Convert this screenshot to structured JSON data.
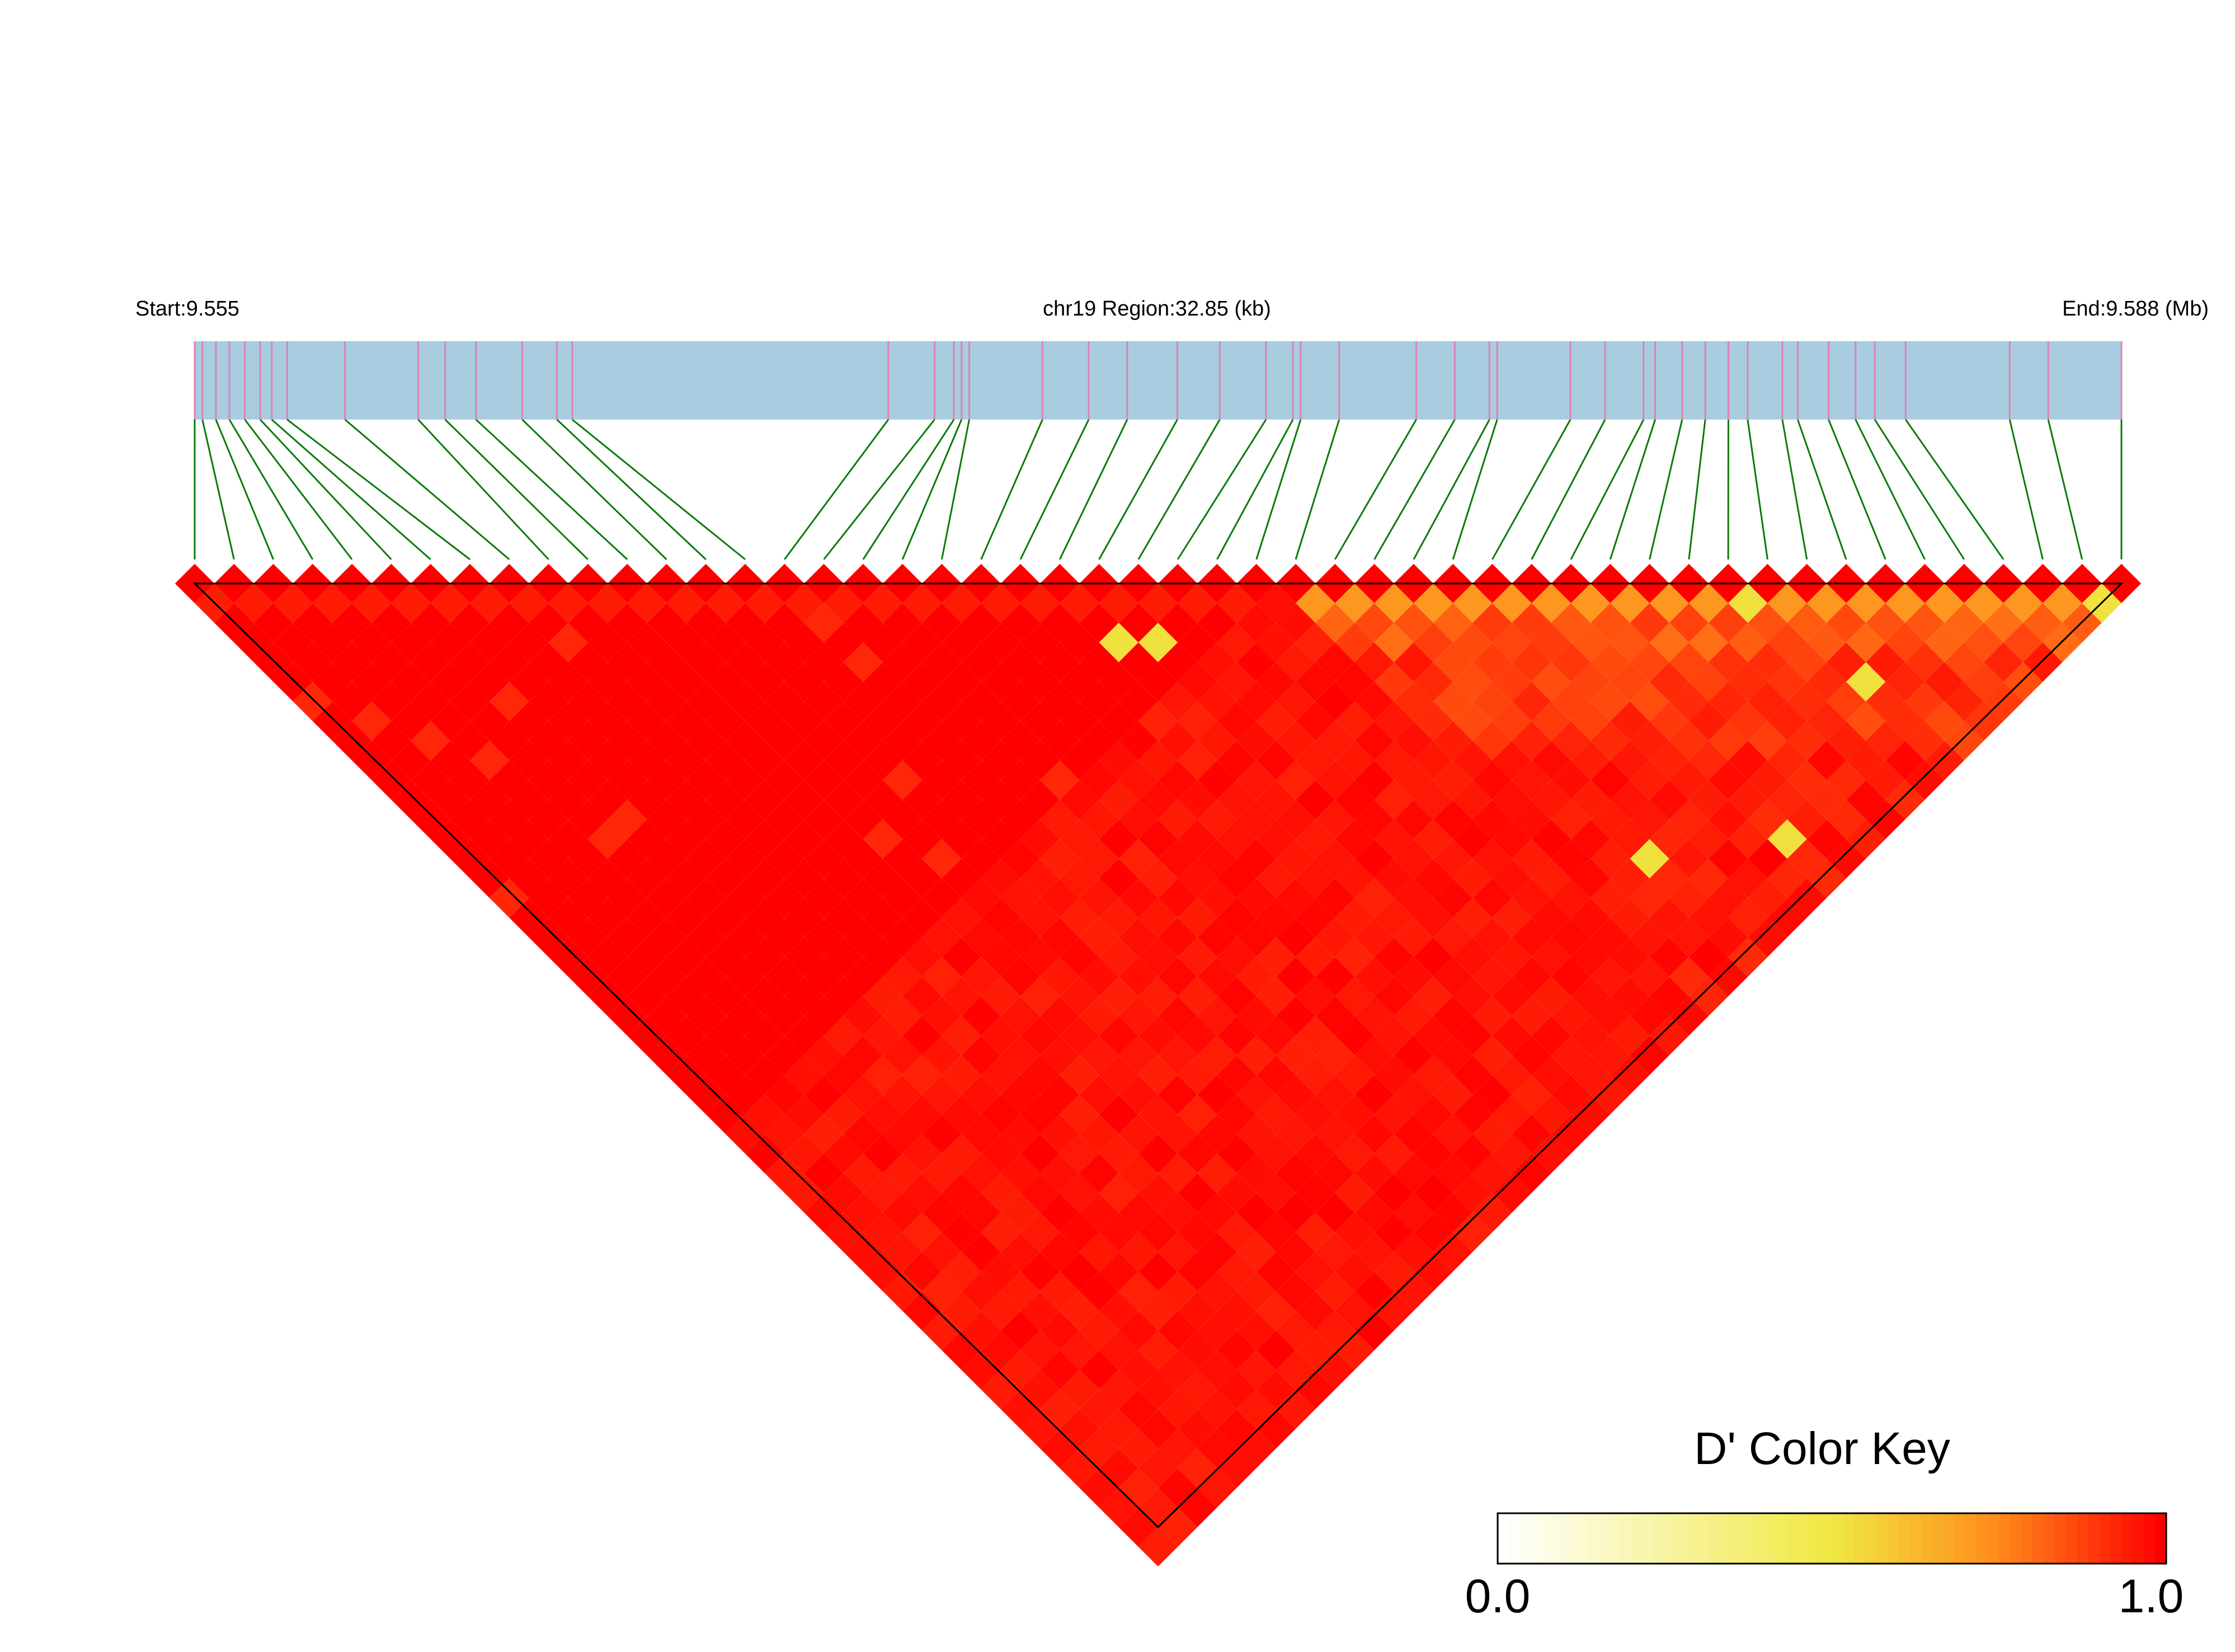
{
  "header": {
    "start_label": "Start:9.555",
    "region_label": "chr19 Region:32.85 (kb)",
    "end_label": "End:9.588 (Mb)"
  },
  "colors": {
    "gene_track": "#a8cde0",
    "snp_tick": "#e080b4",
    "connector": "#0a7a0a",
    "cell_high": "#ff0000",
    "cell_mid": "#ff8c1a",
    "cell_low": "#f5e642",
    "outline": "#000000"
  },
  "chart_data": {
    "type": "heatmap",
    "metric": "D'",
    "snp_count": 50,
    "snp_track_fractions": [
      0.0,
      0.004,
      0.011,
      0.018,
      0.026,
      0.034,
      0.04,
      0.048,
      0.078,
      0.116,
      0.13,
      0.146,
      0.17,
      0.188,
      0.196,
      0.36,
      0.384,
      0.394,
      0.398,
      0.402,
      0.44,
      0.464,
      0.484,
      0.51,
      0.532,
      0.556,
      0.57,
      0.574,
      0.594,
      0.634,
      0.654,
      0.672,
      0.676,
      0.714,
      0.732,
      0.752,
      0.758,
      0.772,
      0.784,
      0.796,
      0.806,
      0.824,
      0.832,
      0.848,
      0.862,
      0.872,
      0.888,
      0.942,
      0.962,
      1.0
    ],
    "blocks": [
      {
        "start": 0,
        "end": 49,
        "value": 1.0
      }
    ]
  },
  "color_key": {
    "title": "D' Color Key",
    "min_label": "0.0",
    "max_label": "1.0",
    "min": 0.0,
    "max": 1.0
  }
}
